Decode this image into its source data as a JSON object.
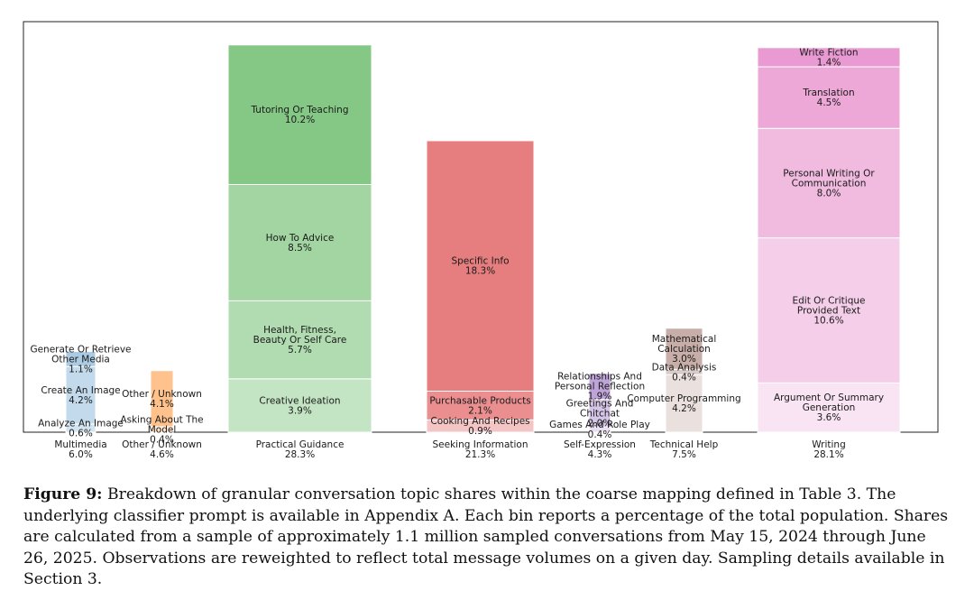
{
  "chart_data": {
    "type": "bar",
    "stacked": true,
    "grid": false,
    "ylim": [
      0,
      30
    ],
    "categories": [
      {
        "name": "Multimedia",
        "total": "6.0%",
        "color": "#1f77b4",
        "segments": [
          {
            "label": [
              "Analyze An Image"
            ],
            "value": 0.6,
            "value_label": "0.6%",
            "opacity": 0.2
          },
          {
            "label": [
              "Create An Image"
            ],
            "value": 4.2,
            "value_label": "4.2%",
            "opacity": 0.27
          },
          {
            "label": [
              "Generate Or Retrieve",
              "Other Media"
            ],
            "value": 1.1,
            "value_label": "1.1%",
            "opacity": 0.38
          }
        ]
      },
      {
        "name": "Other / Unknown",
        "total": "4.6%",
        "color": "#ff7f0e",
        "segments": [
          {
            "label": [
              "Asking About The",
              "Model"
            ],
            "value": 0.4,
            "value_label": "0.4%",
            "opacity": 0.22
          },
          {
            "label": [
              "Other / Unknown"
            ],
            "value": 4.1,
            "value_label": "4.1%",
            "opacity": 0.48
          }
        ]
      },
      {
        "name": "Practical Guidance",
        "total": "28.3%",
        "color": "#2ca02c",
        "segments": [
          {
            "label": [
              "Creative Ideation"
            ],
            "value": 3.9,
            "value_label": "3.9%",
            "opacity": 0.28
          },
          {
            "label": [
              "Health, Fitness,",
              "Beauty Or Self Care"
            ],
            "value": 5.7,
            "value_label": "5.7%",
            "opacity": 0.37
          },
          {
            "label": [
              "How To Advice"
            ],
            "value": 8.5,
            "value_label": "8.5%",
            "opacity": 0.44
          },
          {
            "label": [
              "Tutoring Or Teaching"
            ],
            "value": 10.2,
            "value_label": "10.2%",
            "opacity": 0.58
          }
        ]
      },
      {
        "name": "Seeking Information",
        "total": "21.3%",
        "color": "#d62728",
        "segments": [
          {
            "label": [
              "Cooking And Recipes"
            ],
            "value": 0.9,
            "value_label": "0.9%",
            "opacity": 0.27
          },
          {
            "label": [
              "Purchasable Products"
            ],
            "value": 2.1,
            "value_label": "2.1%",
            "opacity": 0.52
          },
          {
            "label": [
              "Specific Info"
            ],
            "value": 18.3,
            "value_label": "18.3%",
            "opacity": 0.6
          }
        ]
      },
      {
        "name": "Self-Expression",
        "total": "4.3%",
        "color": "#9467bd",
        "segments": [
          {
            "label": [
              "Games And Role Play"
            ],
            "value": 0.4,
            "value_label": "0.4%",
            "opacity": 0.22
          },
          {
            "label": [
              "Greetings And",
              "Chitchat"
            ],
            "value": 2.0,
            "value_label": "2.0%",
            "opacity": 0.38
          },
          {
            "label": [
              "Relationships And",
              "Personal Reflection"
            ],
            "value": 1.9,
            "value_label": "1.9%",
            "opacity": 0.6
          }
        ]
      },
      {
        "name": "Technical Help",
        "total": "7.5%",
        "color": "#8c564b",
        "segments": [
          {
            "label": [
              "Computer Programming"
            ],
            "value": 4.2,
            "value_label": "4.2%",
            "opacity": 0.18
          },
          {
            "label": [
              "Data Analysis"
            ],
            "value": 0.4,
            "value_label": "0.4%",
            "opacity": 0.3
          },
          {
            "label": [
              "Mathematical",
              "Calculation"
            ],
            "value": 3.0,
            "value_label": "3.0%",
            "opacity": 0.48
          }
        ]
      },
      {
        "name": "Writing",
        "total": "28.1%",
        "color": "#e377c2",
        "segments": [
          {
            "label": [
              "Argument Or Summary",
              "Generation"
            ],
            "value": 3.6,
            "value_label": "3.6%",
            "opacity": 0.2
          },
          {
            "label": [
              "Edit Or Critique",
              "Provided Text"
            ],
            "value": 10.6,
            "value_label": "10.6%",
            "opacity": 0.36
          },
          {
            "label": [
              "Personal Writing Or",
              "Communication"
            ],
            "value": 8.0,
            "value_label": "8.0%",
            "opacity": 0.5
          },
          {
            "label": [
              "Translation"
            ],
            "value": 4.5,
            "value_label": "4.5%",
            "opacity": 0.64
          },
          {
            "label": [
              "Write Fiction"
            ],
            "value": 1.4,
            "value_label": "1.4%",
            "opacity": 0.74
          }
        ]
      }
    ]
  },
  "caption": {
    "figure_label": "Figure 9:",
    "text": "Breakdown of granular conversation topic shares within the coarse mapping defined in Table 3. The underlying classifier prompt is available in Appendix A. Each bin reports a percentage of the total population. Shares are calculated from a sample of approximately 1.1 million sampled conversations from May 15, 2024 through June 26, 2025. Observations are reweighted to reflect total message volumes on a given day. Sampling details available in Section 3."
  }
}
